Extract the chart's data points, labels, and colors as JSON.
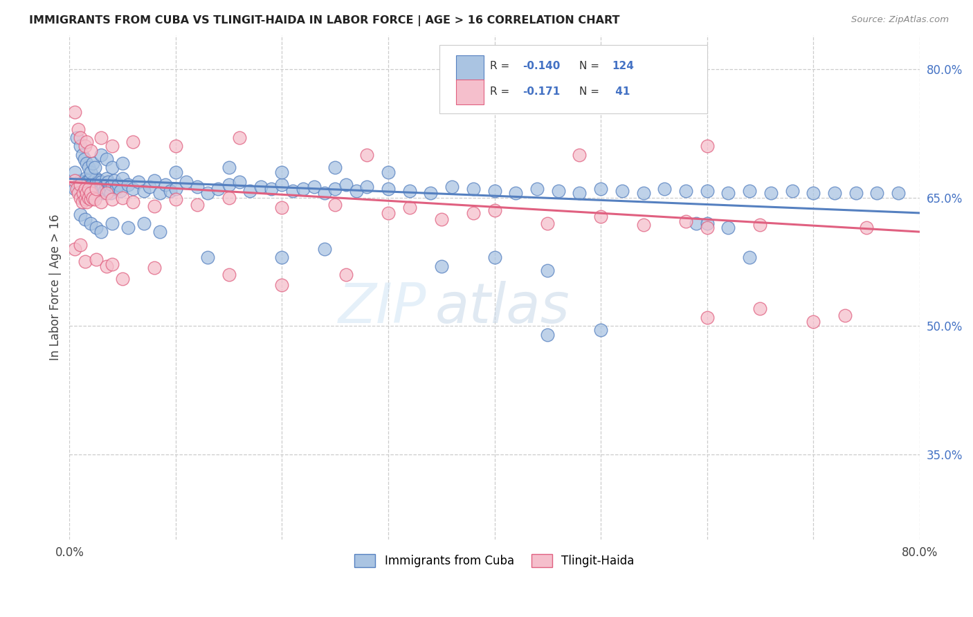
{
  "title": "IMMIGRANTS FROM CUBA VS TLINGIT-HAIDA IN LABOR FORCE | AGE > 16 CORRELATION CHART",
  "source": "Source: ZipAtlas.com",
  "ylabel": "In Labor Force | Age > 16",
  "xlim": [
    0.0,
    0.8
  ],
  "ylim": [
    0.25,
    0.84
  ],
  "xtick_positions": [
    0.0,
    0.1,
    0.2,
    0.3,
    0.4,
    0.5,
    0.6,
    0.7,
    0.8
  ],
  "xticklabels": [
    "0.0%",
    "",
    "",
    "",
    "",
    "",
    "",
    "",
    "80.0%"
  ],
  "yticks_right": [
    0.35,
    0.5,
    0.65,
    0.8
  ],
  "ytick_labels_right": [
    "35.0%",
    "50.0%",
    "65.0%",
    "80.0%"
  ],
  "blue_color": "#aac4e2",
  "blue_edge_color": "#5580c0",
  "pink_color": "#f5bfcc",
  "pink_edge_color": "#e06080",
  "label1": "Immigrants from Cuba",
  "label2": "Tlingit-Haida",
  "watermark_zip": "ZIP",
  "watermark_atlas": "atlas",
  "blue_trend_x": [
    0.0,
    0.8
  ],
  "blue_trend_y": [
    0.672,
    0.632
  ],
  "pink_trend_x": [
    0.0,
    0.8
  ],
  "pink_trend_y": [
    0.668,
    0.61
  ],
  "blue_x": [
    0.005,
    0.008,
    0.01,
    0.01,
    0.012,
    0.013,
    0.015,
    0.015,
    0.016,
    0.016,
    0.017,
    0.018,
    0.018,
    0.019,
    0.02,
    0.02,
    0.02,
    0.021,
    0.021,
    0.022,
    0.022,
    0.023,
    0.023,
    0.024,
    0.024,
    0.025,
    0.025,
    0.026,
    0.026,
    0.027,
    0.028,
    0.028,
    0.029,
    0.03,
    0.03,
    0.031,
    0.032,
    0.033,
    0.034,
    0.035,
    0.035,
    0.036,
    0.037,
    0.038,
    0.039,
    0.04,
    0.042,
    0.044,
    0.046,
    0.048,
    0.05,
    0.055,
    0.06,
    0.065,
    0.07,
    0.075,
    0.08,
    0.085,
    0.09,
    0.095,
    0.1,
    0.11,
    0.12,
    0.13,
    0.14,
    0.15,
    0.16,
    0.17,
    0.18,
    0.19,
    0.2,
    0.21,
    0.22,
    0.23,
    0.24,
    0.25,
    0.26,
    0.27,
    0.28,
    0.3,
    0.32,
    0.34,
    0.36,
    0.38,
    0.4,
    0.42,
    0.44,
    0.46,
    0.48,
    0.5,
    0.52,
    0.54,
    0.56,
    0.58,
    0.6,
    0.62,
    0.64,
    0.66,
    0.68,
    0.7,
    0.72,
    0.74,
    0.76,
    0.78
  ],
  "blue_y": [
    0.66,
    0.665,
    0.658,
    0.67,
    0.663,
    0.668,
    0.65,
    0.672,
    0.655,
    0.668,
    0.66,
    0.665,
    0.67,
    0.658,
    0.66,
    0.665,
    0.672,
    0.658,
    0.665,
    0.655,
    0.668,
    0.66,
    0.67,
    0.655,
    0.665,
    0.658,
    0.672,
    0.66,
    0.668,
    0.655,
    0.663,
    0.67,
    0.658,
    0.66,
    0.668,
    0.655,
    0.663,
    0.658,
    0.665,
    0.66,
    0.672,
    0.668,
    0.658,
    0.663,
    0.655,
    0.665,
    0.67,
    0.66,
    0.665,
    0.658,
    0.672,
    0.665,
    0.66,
    0.668,
    0.658,
    0.663,
    0.67,
    0.655,
    0.665,
    0.658,
    0.66,
    0.668,
    0.663,
    0.655,
    0.66,
    0.665,
    0.668,
    0.658,
    0.663,
    0.66,
    0.665,
    0.658,
    0.66,
    0.663,
    0.655,
    0.66,
    0.665,
    0.658,
    0.663,
    0.66,
    0.658,
    0.655,
    0.663,
    0.66,
    0.658,
    0.655,
    0.66,
    0.658,
    0.655,
    0.66,
    0.658,
    0.655,
    0.66,
    0.658,
    0.658,
    0.655,
    0.658,
    0.655,
    0.658,
    0.655,
    0.655,
    0.655,
    0.655,
    0.655
  ],
  "blue_x_extra": [
    0.005,
    0.007,
    0.01,
    0.012,
    0.014,
    0.016,
    0.018,
    0.02,
    0.022,
    0.024,
    0.03,
    0.035,
    0.04,
    0.05,
    0.1,
    0.15,
    0.2,
    0.25,
    0.3,
    0.45
  ],
  "blue_y_extra": [
    0.68,
    0.72,
    0.71,
    0.7,
    0.695,
    0.69,
    0.685,
    0.68,
    0.69,
    0.685,
    0.7,
    0.695,
    0.685,
    0.69,
    0.68,
    0.685,
    0.68,
    0.685,
    0.68,
    0.49
  ],
  "blue_x_low": [
    0.01,
    0.015,
    0.02,
    0.025,
    0.03,
    0.04,
    0.055,
    0.07,
    0.085,
    0.13,
    0.2,
    0.24,
    0.35,
    0.4,
    0.45,
    0.5,
    0.59,
    0.6,
    0.62,
    0.64
  ],
  "blue_y_low": [
    0.63,
    0.625,
    0.62,
    0.615,
    0.61,
    0.62,
    0.615,
    0.62,
    0.61,
    0.58,
    0.58,
    0.59,
    0.57,
    0.58,
    0.565,
    0.495,
    0.62,
    0.62,
    0.615,
    0.58
  ],
  "pink_x": [
    0.005,
    0.007,
    0.008,
    0.01,
    0.01,
    0.012,
    0.013,
    0.015,
    0.015,
    0.016,
    0.016,
    0.018,
    0.018,
    0.02,
    0.02,
    0.022,
    0.024,
    0.025,
    0.03,
    0.035,
    0.04,
    0.05,
    0.06,
    0.08,
    0.1,
    0.12,
    0.15,
    0.2,
    0.25,
    0.3,
    0.32,
    0.35,
    0.38,
    0.4,
    0.45,
    0.5,
    0.54,
    0.58,
    0.6,
    0.65,
    0.75
  ],
  "pink_y": [
    0.67,
    0.66,
    0.655,
    0.65,
    0.665,
    0.645,
    0.655,
    0.648,
    0.66,
    0.645,
    0.655,
    0.65,
    0.66,
    0.648,
    0.655,
    0.65,
    0.648,
    0.66,
    0.645,
    0.655,
    0.648,
    0.65,
    0.645,
    0.64,
    0.648,
    0.642,
    0.65,
    0.638,
    0.642,
    0.632,
    0.638,
    0.625,
    0.632,
    0.635,
    0.62,
    0.628,
    0.618,
    0.622,
    0.615,
    0.618,
    0.615
  ],
  "pink_x_high": [
    0.005,
    0.008,
    0.01,
    0.015,
    0.016,
    0.02,
    0.03,
    0.04,
    0.06,
    0.1,
    0.16,
    0.28,
    0.48,
    0.6
  ],
  "pink_y_high": [
    0.75,
    0.73,
    0.72,
    0.71,
    0.715,
    0.705,
    0.72,
    0.71,
    0.715,
    0.71,
    0.72,
    0.7,
    0.7,
    0.71
  ],
  "pink_x_low": [
    0.005,
    0.01,
    0.015,
    0.025,
    0.035,
    0.04,
    0.05,
    0.08,
    0.15,
    0.2,
    0.26,
    0.6,
    0.65,
    0.7,
    0.73
  ],
  "pink_y_low": [
    0.59,
    0.595,
    0.575,
    0.578,
    0.57,
    0.572,
    0.555,
    0.568,
    0.56,
    0.548,
    0.56,
    0.51,
    0.52,
    0.505,
    0.512
  ]
}
